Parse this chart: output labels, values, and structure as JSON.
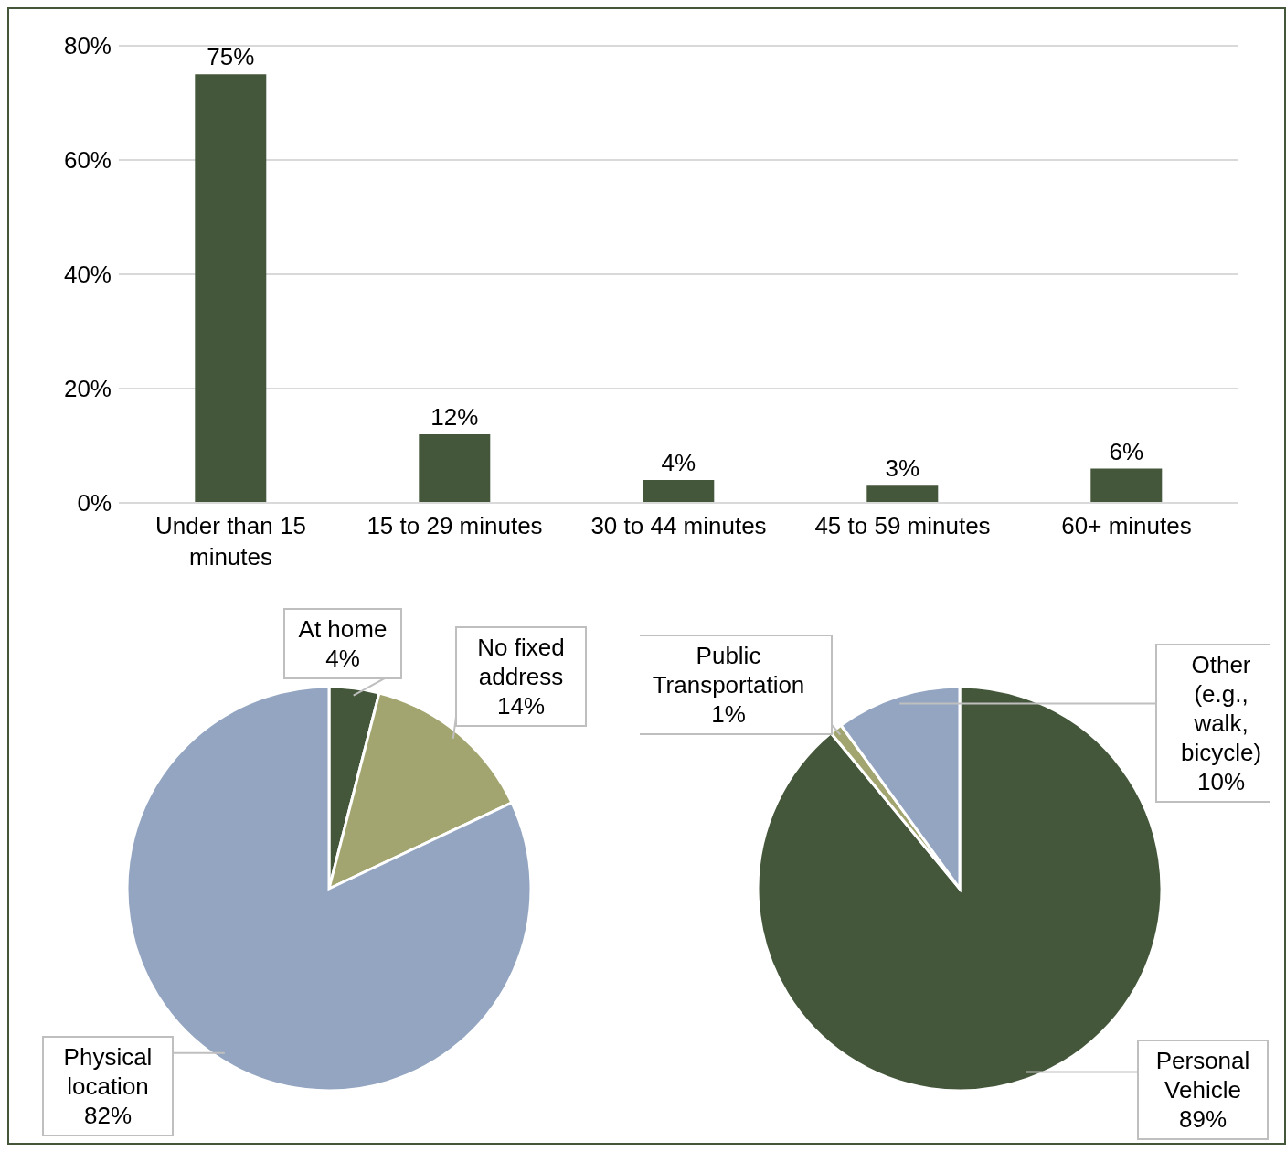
{
  "chart_data": [
    {
      "type": "bar",
      "categories": [
        "Under than 15 minutes",
        "15 to 29 minutes",
        "30 to 44 minutes",
        "45 to 59 minutes",
        "60+ minutes"
      ],
      "values": [
        75,
        12,
        4,
        3,
        6
      ],
      "value_labels": [
        "75%",
        "12%",
        "4%",
        "3%",
        "6%"
      ],
      "color": "#44573a",
      "ylim": [
        0,
        80
      ],
      "yticks": [
        {
          "value": 0,
          "label": "0%"
        },
        {
          "value": 20,
          "label": "20%"
        },
        {
          "value": 40,
          "label": "40%"
        },
        {
          "value": 60,
          "label": "60%"
        },
        {
          "value": 80,
          "label": "80%"
        }
      ],
      "grid": "y"
    },
    {
      "type": "pie",
      "categories": [
        "At home",
        "No fixed address",
        "Physical location"
      ],
      "values": [
        4,
        14,
        82
      ],
      "value_labels": [
        "4%",
        "14%",
        "82%"
      ],
      "colors": [
        "#44573a",
        "#a2a56f",
        "#93a5c1"
      ]
    },
    {
      "type": "pie",
      "categories": [
        "Personal Vehicle",
        "Public Transportation",
        "Other (e.g., walk, bicycle)"
      ],
      "values": [
        89,
        1,
        10
      ],
      "value_labels": [
        "89%",
        "1%",
        "10%"
      ],
      "colors": [
        "#44573a",
        "#a2a56f",
        "#93a5c1"
      ]
    }
  ]
}
